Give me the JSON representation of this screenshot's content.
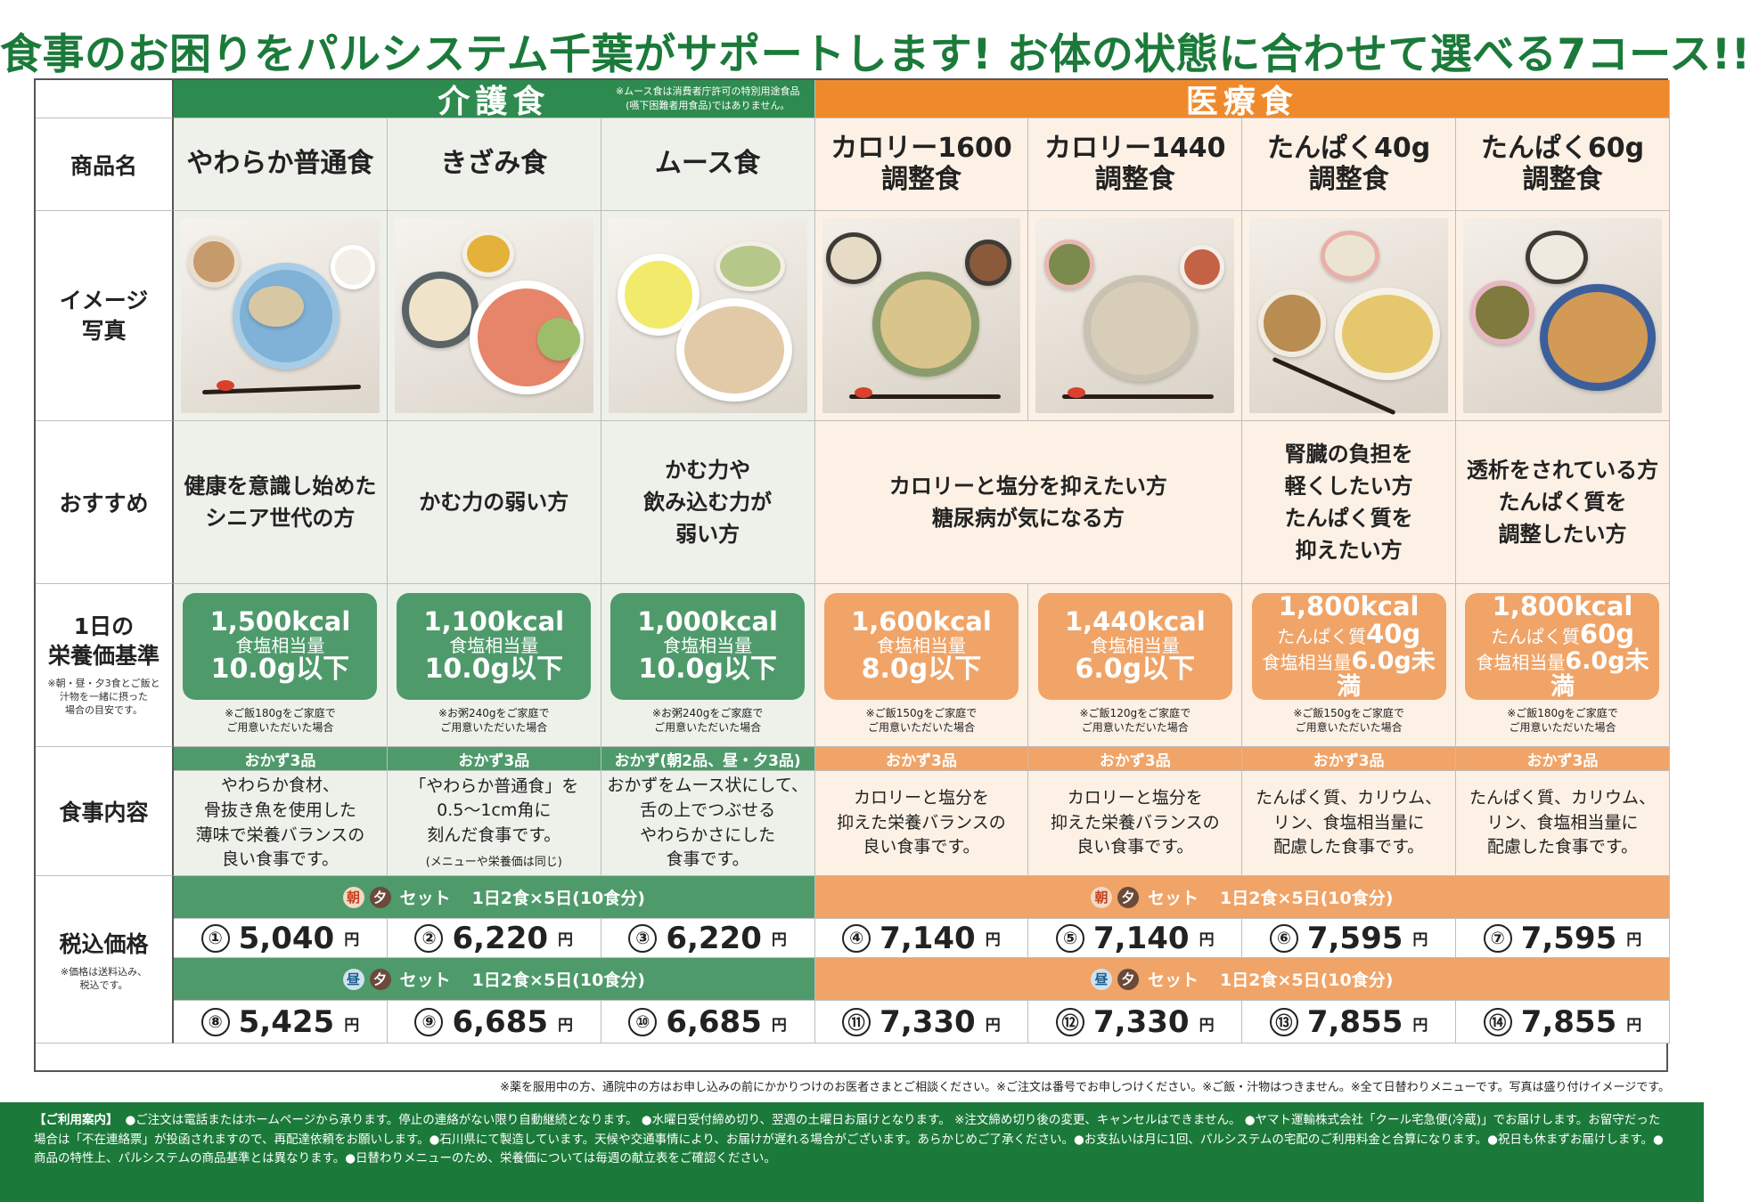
{
  "headline": "食事のお困りをパルシステム千葉がサポートします! お体の状態に合わせて選べる7コース!!",
  "groups": {
    "care": {
      "title": "介護食",
      "note": "※ムース食は消費者庁許可の特別用途食品\n(嚥下困難者用食品)ではありません。"
    },
    "medical": {
      "title": "医療食"
    }
  },
  "row_labels": {
    "name": "商品名",
    "photo": "イメージ\n写真",
    "recommend": "おすすめ",
    "nutrition": "1日の\n栄養価基準",
    "nutrition_note": "※朝・昼・夕3食とご飯と\n汁物を一緒に摂った\n場合の目安です。",
    "meal": "食事内容",
    "price": "税込価格",
    "price_note": "※価格は送料込み、\n税込です。"
  },
  "products": [
    {
      "name": "やわらか普通食",
      "recommend": "健康を意識し始めた\nシニア世代の方",
      "kcal": "1,500kcal",
      "salt_label": "食塩相当量",
      "salt": "10.0g以下",
      "rice_note": "※ご飯180gをご家庭で\nご用意いただいた場合",
      "okazu": "おかず3品",
      "meal": "やわらか食材、\n骨抜き魚を使用した\n薄味で栄養バランスの\n良い食事です。",
      "price_a_no": "①",
      "price_a": "5,040",
      "price_b_no": "⑧",
      "price_b": "5,425"
    },
    {
      "name": "きざみ食",
      "recommend": "かむ力の弱い方",
      "kcal": "1,100kcal",
      "salt_label": "食塩相当量",
      "salt": "10.0g以下",
      "rice_note": "※お粥240gをご家庭で\nご用意いただいた場合",
      "okazu": "おかず3品",
      "meal": "「やわらか普通食」を\n0.5〜1cm角に\n刻んだ食事です。",
      "meal_sub": "(メニューや栄養価は同じ)",
      "price_a_no": "②",
      "price_a": "6,220",
      "price_b_no": "⑨",
      "price_b": "6,685"
    },
    {
      "name": "ムース食",
      "recommend": "かむ力や\n飲み込む力が\n弱い方",
      "kcal": "1,000kcal",
      "salt_label": "食塩相当量",
      "salt": "10.0g以下",
      "rice_note": "※お粥240gをご家庭で\nご用意いただいた場合",
      "okazu": "おかず(朝2品、昼・夕3品)",
      "meal": "おかずをムース状にして、\n舌の上でつぶせる\nやわらかさにした\n食事です。",
      "price_a_no": "③",
      "price_a": "6,220",
      "price_b_no": "⑩",
      "price_b": "6,685"
    },
    {
      "name": "カロリー1600\n調整食",
      "kcal": "1,600kcal",
      "salt_label": "食塩相当量",
      "salt": "8.0g以下",
      "rice_note": "※ご飯150gをご家庭で\nご用意いただいた場合",
      "okazu": "おかず3品",
      "meal": "カロリーと塩分を\n抑えた栄養バランスの\n良い食事です。",
      "price_a_no": "④",
      "price_a": "7,140",
      "price_b_no": "⑪",
      "price_b": "7,330"
    },
    {
      "name": "カロリー1440\n調整食",
      "kcal": "1,440kcal",
      "salt_label": "食塩相当量",
      "salt": "6.0g以下",
      "rice_note": "※ご飯120gをご家庭で\nご用意いただいた場合",
      "okazu": "おかず3品",
      "meal": "カロリーと塩分を\n抑えた栄養バランスの\n良い食事です。",
      "price_a_no": "⑤",
      "price_a": "7,140",
      "price_b_no": "⑫",
      "price_b": "7,330"
    },
    {
      "name": "たんぱく40g\n調整食",
      "recommend": "腎臓の負担を\n軽くしたい方\nたんぱく質を\n抑えたい方",
      "kcal": "1,800kcal",
      "protein_label": "たんぱく質",
      "protein": "40g",
      "salt_label": "食塩相当量",
      "salt": "6.0g未満",
      "rice_note": "※ご飯150gをご家庭で\nご用意いただいた場合",
      "okazu": "おかず3品",
      "meal": "たんぱく質、カリウム、\nリン、食塩相当量に\n配慮した食事です。",
      "price_a_no": "⑥",
      "price_a": "7,595",
      "price_b_no": "⑬",
      "price_b": "7,855"
    },
    {
      "name": "たんぱく60g\n調整食",
      "recommend": "透析をされている方\nたんぱく質を\n調整したい方",
      "kcal": "1,800kcal",
      "protein_label": "たんぱく質",
      "protein": "60g",
      "salt_label": "食塩相当量",
      "salt": "6.0g未満",
      "rice_note": "※ご飯180gをご家庭で\nご用意いただいた場合",
      "okazu": "おかず3品",
      "meal": "たんぱく質、カリウム、\nリン、食塩相当量に\n配慮した食事です。",
      "price_a_no": "⑦",
      "price_a": "7,595",
      "price_b_no": "⑭",
      "price_b": "7,855"
    }
  ],
  "calorie_recommend": "カロリーと塩分を抑えたい方\n糖尿病が気になる方",
  "sets": {
    "a": {
      "sym1": "朝",
      "sym2": "夕",
      "label": "セット",
      "detail": "1日2食×5日(10食分)"
    },
    "b": {
      "sym1": "昼",
      "sym2": "夕",
      "label": "セット",
      "detail": "1日2食×5日(10食分)"
    }
  },
  "yen": "円",
  "bottom_note": "※薬を服用中の方、通院中の方はお申し込みの前にかかりつけのお医者さまとご相談ください。※ご注文は番号でお申しつけください。※ご飯・汁物はつきません。※全て日替わりメニューです。写真は盛り付けイメージです。",
  "footer": {
    "title": "【ご利用案内】",
    "text": "●ご注文は電話またはホームページから承ります。停止の連絡がない限り自動継続となります。 ●水曜日受付締め切り、翌週の土曜日お届けとなります。 ※注文締め切り後の変更、キャンセルはできません。 ●ヤマト運輸株式会社「クール宅急便(冷蔵)」でお届けします。お留守だった場合は「不在連絡票」が投函されますので、再配達依頼をお願いします。●石川県にて製造しています。天候や交通事情により、お届けが遅れる場合がございます。あらかじめご了承ください。●お支払いは月に1回、パルシステムの宅配のご利用料金と合算になります。●祝日も休まずお届けします。●商品の特性上、パルシステムの商品基準とは異なります。●日替わりメニューのため、栄養価については毎週の献立表をご確認ください。"
  }
}
